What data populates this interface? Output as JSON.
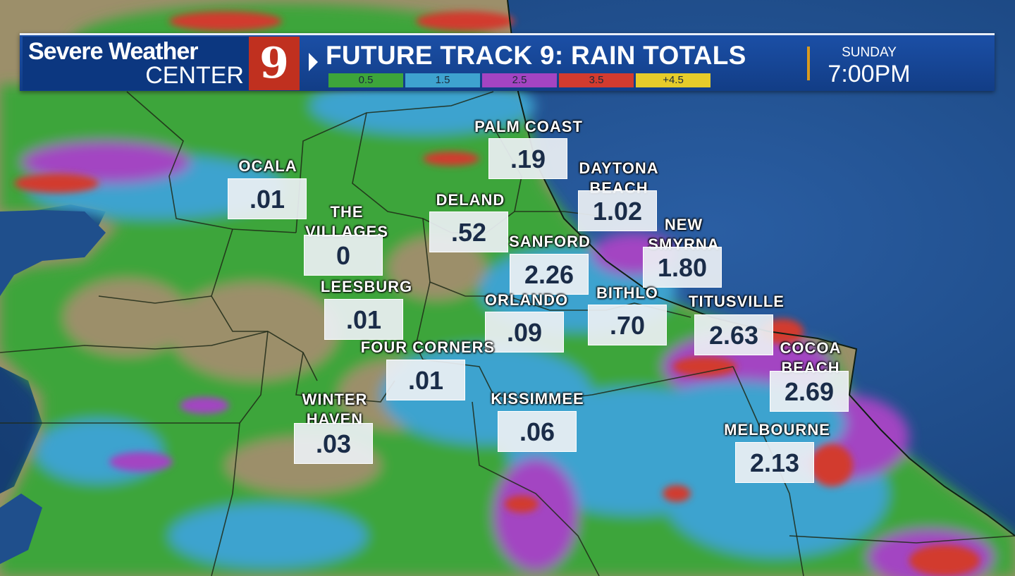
{
  "header": {
    "brand_line1": "Severe Weather",
    "brand_line2": "CENTER",
    "logo_text": "9",
    "title": "FUTURE TRACK 9: RAIN TOTALS",
    "day": "SUNDAY",
    "time": "7:00PM"
  },
  "legend": [
    {
      "label": "0.5",
      "color": "#3da53a"
    },
    {
      "label": "1.5",
      "color": "#3ea3cf"
    },
    {
      "label": "2.5",
      "color": "#a344c2"
    },
    {
      "label": "3.5",
      "color": "#d23b2f"
    },
    {
      "label": "+4.5",
      "color": "#e6cc2a"
    }
  ],
  "cities": [
    {
      "name": "PALM COAST",
      "value": ".19"
    },
    {
      "name": "OCALA",
      "value": ".01"
    },
    {
      "name": "DAYTONA BEACH",
      "value": "1.02"
    },
    {
      "name": "DELAND",
      "value": ".52"
    },
    {
      "name": "THE VILLAGES",
      "value": "0"
    },
    {
      "name": "NEW SMYRNA",
      "value": "1.80"
    },
    {
      "name": "SANFORD",
      "value": "2.26"
    },
    {
      "name": "LEESBURG",
      "value": ".01"
    },
    {
      "name": "ORLANDO",
      "value": ".09"
    },
    {
      "name": "BITHLO",
      "value": ".70"
    },
    {
      "name": "TITUSVILLE",
      "value": "2.63"
    },
    {
      "name": "FOUR CORNERS",
      "value": ".01"
    },
    {
      "name": "COCOA BEACH",
      "value": "2.69"
    },
    {
      "name": "WINTER HAVEN",
      "value": ".03"
    },
    {
      "name": "KISSIMMEE",
      "value": ".06"
    },
    {
      "name": "MELBOURNE",
      "value": "2.13"
    }
  ],
  "colors": {
    "ocean": "#1c4a86",
    "land": "#9c8f6a",
    "rain_light": "#3da53a",
    "rain_mid": "#3ea3cf",
    "rain_heavy": "#a344c2",
    "rain_extreme": "#d23b2f",
    "banner": "#123d86",
    "logo_red": "#c0301f",
    "time_divider": "#d99a1e"
  }
}
